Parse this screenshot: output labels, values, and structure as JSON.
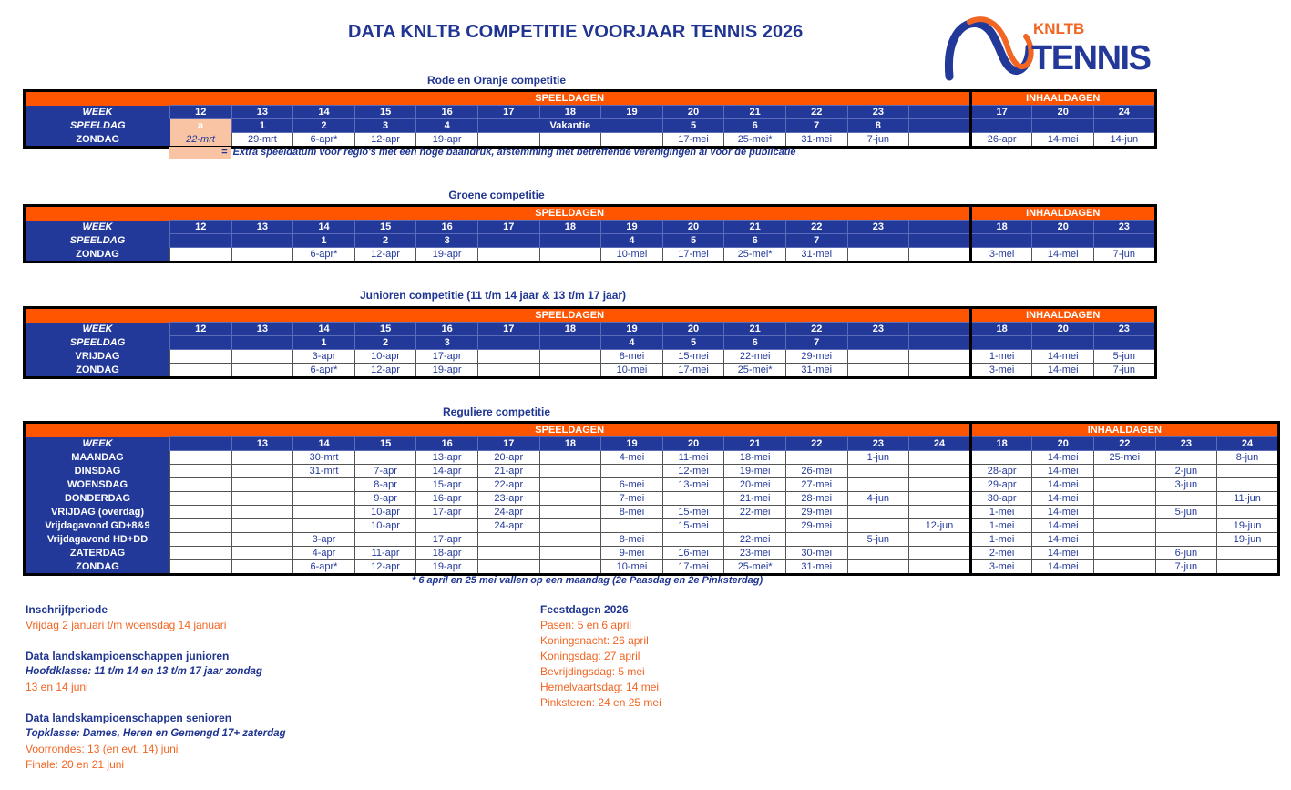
{
  "title": "DATA KNLTB COMPETITIE VOORJAAR TENNIS 2026",
  "logo": {
    "line1": "KNLTB",
    "line2": "TENNIS",
    "colors": {
      "blue": "#23399a",
      "orange": "#f26522"
    }
  },
  "colors": {
    "orange_header": "#ff5500",
    "blue_header": "#23399a",
    "highlight": "#f8c4a4",
    "text_orange": "#f26522"
  },
  "tables": [
    {
      "title": "Rode en Oranje competitie",
      "speeldagen_label": "SPEELDAGEN",
      "inhaaldagen_label": "INHAALDAGEN",
      "week_label": "WEEK",
      "weeks": [
        "12",
        "13",
        "14",
        "15",
        "16",
        "17",
        "18",
        "19",
        "20",
        "21",
        "22",
        "23",
        "",
        "17",
        "20",
        "24"
      ],
      "rows": [
        {
          "label": "SPEELDAG",
          "style": "blue",
          "italic": true,
          "cells": [
            {
              "v": "a",
              "hl": true
            },
            "1",
            "2",
            "3",
            "4",
            {
              "v": "Vakantie",
              "span": 3
            },
            "5",
            "6",
            "7",
            "8",
            "",
            "",
            "",
            ""
          ]
        },
        {
          "label": "ZONDAG",
          "style": "white",
          "cells": [
            {
              "v": "22-mrt",
              "hl": true
            },
            "29-mrt",
            "6-apr*",
            "12-apr",
            "19-apr",
            "",
            "",
            "",
            "17-mei",
            "25-mei*",
            "31-mei",
            "7-jun",
            "",
            "26-apr",
            "14-mei",
            "14-jun"
          ]
        }
      ],
      "legend": {
        "symbol": "=",
        "text": "Extra speeldatum voor regio's met een hoge baandruk, afstemming met betreffende verenigingen al voor de publicatie"
      }
    },
    {
      "title": "Groene competitie",
      "speeldagen_label": "SPEELDAGEN",
      "inhaaldagen_label": "INHAALDAGEN",
      "week_label": "WEEK",
      "weeks": [
        "12",
        "13",
        "14",
        "15",
        "16",
        "17",
        "18",
        "19",
        "20",
        "21",
        "22",
        "23",
        "",
        "18",
        "20",
        "23"
      ],
      "rows": [
        {
          "label": "SPEELDAG",
          "style": "blue",
          "italic": true,
          "cells": [
            "",
            "",
            "1",
            "2",
            "3",
            "",
            "",
            "4",
            "5",
            "6",
            "7",
            "",
            "",
            "",
            "",
            ""
          ]
        },
        {
          "label": "ZONDAG",
          "style": "white",
          "cells": [
            "",
            "",
            "6-apr*",
            "12-apr",
            "19-apr",
            "",
            "",
            "10-mei",
            "17-mei",
            "25-mei*",
            "31-mei",
            "",
            "",
            "3-mei",
            "14-mei",
            "7-jun"
          ]
        }
      ]
    },
    {
      "title": "Junioren competitie (11 t/m 14 jaar & 13 t/m 17 jaar)",
      "speeldagen_label": "SPEELDAGEN",
      "inhaaldagen_label": "INHAALDAGEN",
      "week_label": "WEEK",
      "weeks": [
        "12",
        "13",
        "14",
        "15",
        "16",
        "17",
        "18",
        "19",
        "20",
        "21",
        "22",
        "23",
        "",
        "18",
        "20",
        "23"
      ],
      "rows": [
        {
          "label": "SPEELDAG",
          "style": "blue",
          "italic": true,
          "cells": [
            "",
            "",
            "1",
            "2",
            "3",
            "",
            "",
            "4",
            "5",
            "6",
            "7",
            "",
            "",
            "",
            "",
            ""
          ]
        },
        {
          "label": "VRIJDAG",
          "style": "white",
          "cells": [
            "",
            "",
            "3-apr",
            "10-apr",
            "17-apr",
            "",
            "",
            "8-mei",
            "15-mei",
            "22-mei",
            "29-mei",
            "",
            "",
            "1-mei",
            "14-mei",
            "5-jun"
          ]
        },
        {
          "label": "ZONDAG",
          "style": "white",
          "cells": [
            "",
            "",
            "6-apr*",
            "12-apr",
            "19-apr",
            "",
            "",
            "10-mei",
            "17-mei",
            "25-mei*",
            "31-mei",
            "",
            "",
            "3-mei",
            "14-mei",
            "7-jun"
          ]
        }
      ]
    },
    {
      "title": "Reguliere competitie",
      "speeldagen_label": "SPEELDAGEN",
      "inhaaldagen_label": "INHAALDAGEN",
      "week_label": "WEEK",
      "weeks": [
        "",
        "13",
        "14",
        "15",
        "16",
        "17",
        "18",
        "19",
        "20",
        "21",
        "22",
        "23",
        "24",
        "18",
        "20",
        "22",
        "23",
        "24"
      ],
      "rows": [
        {
          "label": "MAANDAG",
          "style": "white",
          "cells": [
            "",
            "",
            "30-mrt",
            "",
            "13-apr",
            "20-apr",
            "",
            "4-mei",
            "11-mei",
            "18-mei",
            "",
            "1-jun",
            "",
            "",
            "14-mei",
            "25-mei",
            "",
            "8-jun"
          ]
        },
        {
          "label": "DINSDAG",
          "style": "white",
          "cells": [
            "",
            "",
            "31-mrt",
            "7-apr",
            "14-apr",
            "21-apr",
            "",
            "",
            "12-mei",
            "19-mei",
            "26-mei",
            "",
            "",
            "28-apr",
            "14-mei",
            "",
            "2-jun",
            ""
          ]
        },
        {
          "label": "WOENSDAG",
          "style": "white",
          "cells": [
            "",
            "",
            "",
            "8-apr",
            "15-apr",
            "22-apr",
            "",
            "6-mei",
            "13-mei",
            "20-mei",
            "27-mei",
            "",
            "",
            "29-apr",
            "14-mei",
            "",
            "3-jun",
            ""
          ]
        },
        {
          "label": "DONDERDAG",
          "style": "white",
          "cells": [
            "",
            "",
            "",
            "9-apr",
            "16-apr",
            "23-apr",
            "",
            "7-mei",
            "",
            "21-mei",
            "28-mei",
            "4-jun",
            "",
            "30-apr",
            "14-mei",
            "",
            "",
            "11-jun"
          ]
        },
        {
          "label": "VRIJDAG (overdag)",
          "style": "white",
          "cells": [
            "",
            "",
            "",
            "10-apr",
            "17-apr",
            "24-apr",
            "",
            "8-mei",
            "15-mei",
            "22-mei",
            "29-mei",
            "",
            "",
            "1-mei",
            "14-mei",
            "",
            "5-jun",
            ""
          ]
        },
        {
          "label": "Vrijdagavond GD+8&9",
          "style": "white",
          "cells": [
            "",
            "",
            "",
            "10-apr",
            "",
            "24-apr",
            "",
            "",
            "15-mei",
            "",
            "29-mei",
            "",
            "12-jun",
            "1-mei",
            "14-mei",
            "",
            "",
            "19-jun"
          ]
        },
        {
          "label": "Vrijdagavond HD+DD",
          "style": "white",
          "cells": [
            "",
            "",
            "3-apr",
            "",
            "17-apr",
            "",
            "",
            "8-mei",
            "",
            "22-mei",
            "",
            "5-jun",
            "",
            "1-mei",
            "14-mei",
            "",
            "",
            "19-jun"
          ]
        },
        {
          "label": "ZATERDAG",
          "style": "white",
          "cells": [
            "",
            "",
            "4-apr",
            "11-apr",
            "18-apr",
            "",
            "",
            "9-mei",
            "16-mei",
            "23-mei",
            "30-mei",
            "",
            "",
            "2-mei",
            "14-mei",
            "",
            "6-jun",
            ""
          ]
        },
        {
          "label": "ZONDAG",
          "style": "white",
          "cells": [
            "",
            "",
            "6-apr*",
            "12-apr",
            "19-apr",
            "",
            "",
            "10-mei",
            "17-mei",
            "25-mei*",
            "31-mei",
            "",
            "",
            "3-mei",
            "14-mei",
            "",
            "7-jun",
            ""
          ]
        }
      ],
      "footnote": "* 6 april  en 25 mei vallen op een maandag (2e Paasdag en 2e Pinksterdag)"
    }
  ],
  "info_left": [
    {
      "heading": "Inschrijfperiode",
      "lines": [
        {
          "t": "Vrijdag 2 januari t/m woensdag 14 januari",
          "k": "o"
        }
      ]
    },
    {
      "heading": "Data landskampioenschappen junioren",
      "lines": [
        {
          "t": "Hoofdklasse: 11 t/m 14 en 13 t/m 17 jaar zondag",
          "k": "s"
        },
        {
          "t": "13 en 14 juni",
          "k": "o"
        }
      ]
    },
    {
      "heading": "Data landskampioenschappen senioren",
      "lines": [
        {
          "t": "Topklasse: Dames, Heren en Gemengd 17+ zaterdag",
          "k": "s"
        },
        {
          "t": "Voorrondes: 13 (en evt. 14) juni",
          "k": "o"
        },
        {
          "t": "Finale: 20 en 21 juni",
          "k": "o"
        }
      ]
    }
  ],
  "info_right": {
    "heading": "Feestdagen 2026",
    "lines": [
      "Pasen: 5 en 6 april",
      "Koningsnacht: 26 april",
      "Koningsdag: 27 april",
      "Bevrijdingsdag: 5 mei",
      "Hemelvaartsdag: 14 mei",
      "Pinksteren: 24 en 25 mei"
    ]
  }
}
